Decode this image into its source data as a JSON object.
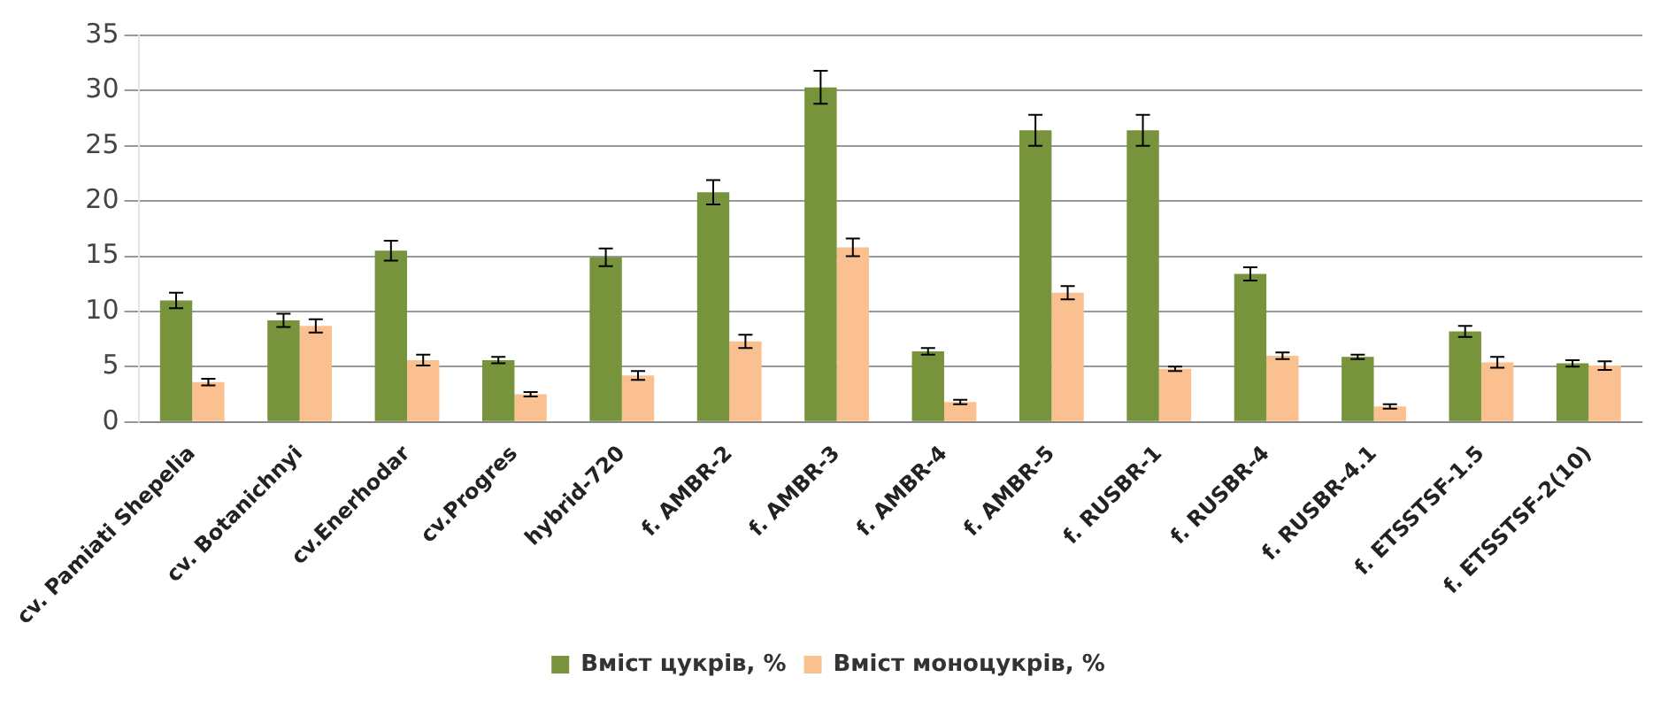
{
  "chart_data": {
    "type": "bar",
    "categories": [
      "cv. Pamiati Shepelia",
      "cv. Botanichnyi",
      "cv.Enerhodar",
      "cv.Progres",
      "hybrid-720",
      "f. AMBR-2",
      "f. AMBR-3",
      "f. AMBR-4",
      "f. AMBR-5",
      "f. RUSBR-1",
      "f. RUSBR-4",
      "f. RUSBR-4.1",
      "f. ETSSTSF-1.5",
      "f. ETSSTSF-2(10)"
    ],
    "series": [
      {
        "name": "Вміст цукрів, %",
        "color": "#77933c",
        "values": [
          11,
          9.2,
          15.5,
          5.6,
          14.9,
          20.8,
          30.3,
          6.4,
          26.4,
          26.4,
          13.4,
          5.9,
          8.2,
          5.3
        ],
        "errors": [
          0.7,
          0.6,
          0.9,
          0.3,
          0.8,
          1.1,
          1.5,
          0.3,
          1.4,
          1.4,
          0.6,
          0.2,
          0.5,
          0.3
        ]
      },
      {
        "name": "Вміст моноцукрів, %",
        "color": "#fac090",
        "values": [
          3.6,
          8.7,
          5.6,
          2.5,
          4.2,
          7.3,
          15.8,
          1.8,
          11.7,
          4.8,
          6.0,
          1.4,
          5.4,
          5.1
        ],
        "errors": [
          0.3,
          0.6,
          0.5,
          0.2,
          0.4,
          0.6,
          0.8,
          0.2,
          0.6,
          0.2,
          0.3,
          0.2,
          0.5,
          0.4
        ]
      }
    ],
    "ylim": [
      0,
      35
    ],
    "yticks": [
      0,
      5,
      10,
      15,
      20,
      25,
      30,
      35
    ],
    "grid": "y",
    "legend": "bottom"
  }
}
